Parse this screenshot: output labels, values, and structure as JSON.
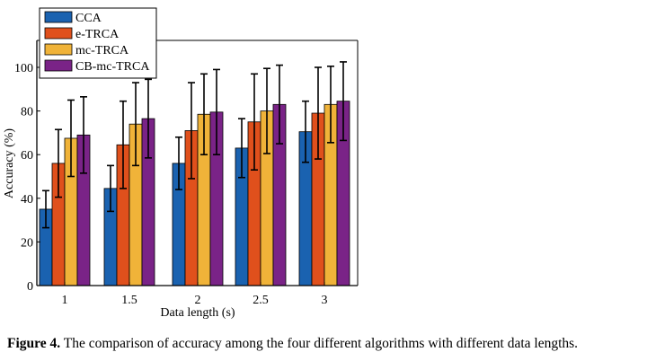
{
  "caption": {
    "label": "Figure 4.",
    "text": "The comparison of accuracy among the four different algorithms with different data lengths."
  },
  "chart_data": {
    "type": "bar",
    "xlabel": "Data length (s)",
    "ylabel": "Accuracy (%)",
    "ylim": [
      0,
      110
    ],
    "yticks": [
      "0",
      "20",
      "40",
      "60",
      "80",
      "100"
    ],
    "categories": [
      "1",
      "1.5",
      "2",
      "2.5",
      "3"
    ],
    "legend_position": "top-left",
    "grid": false,
    "series": [
      {
        "name": "CCA",
        "color": "#1a62b0",
        "values": [
          35,
          44.5,
          56,
          63,
          70.5
        ],
        "errors": [
          8.5,
          10.5,
          12,
          13.5,
          14
        ]
      },
      {
        "name": "e-TRCA",
        "color": "#e0501c",
        "values": [
          56,
          64.5,
          71,
          75,
          79
        ],
        "errors": [
          15.5,
          20,
          22,
          22,
          21
        ]
      },
      {
        "name": "mc-TRCA",
        "color": "#f0b339",
        "values": [
          67.5,
          74,
          78.5,
          80,
          83
        ],
        "errors": [
          17.5,
          19,
          18.5,
          19.5,
          17.5
        ]
      },
      {
        "name": "CB-mc-TRCA",
        "color": "#7a2387",
        "values": [
          69,
          76.5,
          79.5,
          83,
          84.5
        ],
        "errors": [
          17.5,
          18,
          19.5,
          18,
          18
        ]
      }
    ]
  }
}
